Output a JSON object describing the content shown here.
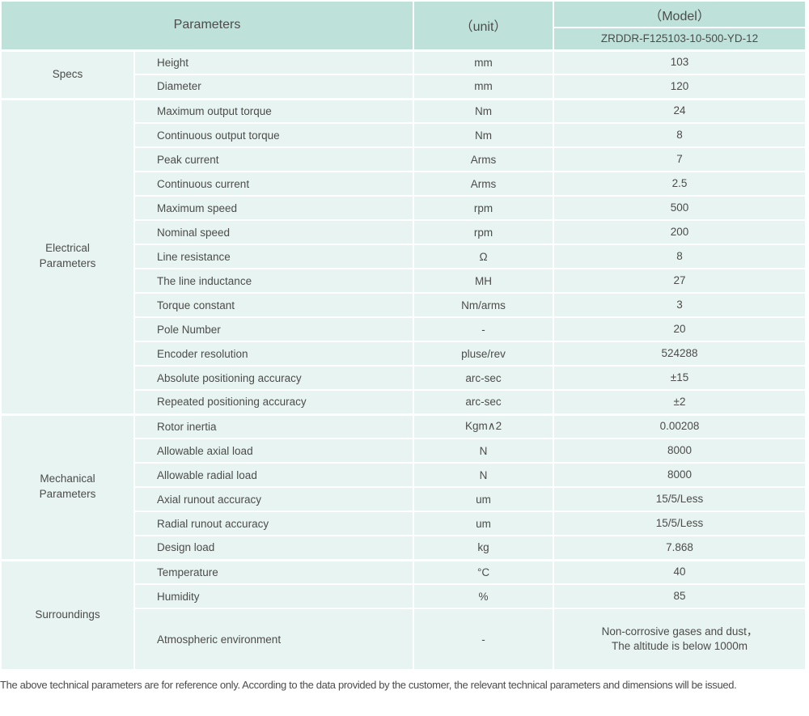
{
  "colors": {
    "header_bg": "#bee1d9",
    "row_bg": "#e8f4f1",
    "text": "#4c4c4c",
    "separator": "#ffffff"
  },
  "header": {
    "parameters_label": "Parameters",
    "unit_label": "（unit）",
    "model_label": "（Model）",
    "model_number": "ZRDDR-F125103-10-500-YD-12"
  },
  "groups": [
    {
      "label": "Specs",
      "rows": [
        {
          "name": "Height",
          "unit": "mm",
          "value": "103"
        },
        {
          "name": "Diameter",
          "unit": "mm",
          "value": "120"
        }
      ]
    },
    {
      "label": "Electrical\nParameters",
      "rows": [
        {
          "name": "Maximum output torque",
          "unit": "Nm",
          "value": "24"
        },
        {
          "name": "Continuous output torque",
          "unit": "Nm",
          "value": "8"
        },
        {
          "name": "Peak current",
          "unit": "Arms",
          "value": "7"
        },
        {
          "name": "Continuous current",
          "unit": "Arms",
          "value": "2.5"
        },
        {
          "name": "Maximum speed",
          "unit": "rpm",
          "value": "500"
        },
        {
          "name": "Nominal speed",
          "unit": "rpm",
          "value": "200"
        },
        {
          "name": "Line resistance",
          "unit": "Ω",
          "value": "8"
        },
        {
          "name": "The line inductance",
          "unit": "MH",
          "value": "27"
        },
        {
          "name": "Torque constant",
          "unit": "Nm/arms",
          "value": "3"
        },
        {
          "name": "Pole Number",
          "unit": "-",
          "value": "20"
        },
        {
          "name": "Encoder resolution",
          "unit": "pluse/rev",
          "value": "524288"
        },
        {
          "name": "Absolute positioning accuracy",
          "unit": "arc-sec",
          "value": "±15"
        },
        {
          "name": "Repeated positioning accuracy",
          "unit": "arc-sec",
          "value": "±2"
        }
      ]
    },
    {
      "label": "Mechanical\nParameters",
      "rows": [
        {
          "name": "Rotor inertia",
          "unit": "Kgm∧2",
          "value": "0.00208"
        },
        {
          "name": "Allowable axial load",
          "unit": "N",
          "value": "8000"
        },
        {
          "name": "Allowable radial load",
          "unit": "N",
          "value": "8000"
        },
        {
          "name": "Axial runout accuracy",
          "unit": "um",
          "value": "15/5/Less"
        },
        {
          "name": "Radial runout accuracy",
          "unit": "um",
          "value": "15/5/Less"
        },
        {
          "name": "Design load",
          "unit": "kg",
          "value": "7.868"
        }
      ]
    },
    {
      "label": "Surroundings",
      "rows": [
        {
          "name": "Temperature",
          "unit": "°C",
          "value": "40"
        },
        {
          "name": "Humidity",
          "unit": "%",
          "value": "85"
        },
        {
          "name": "Atmospheric environment",
          "unit": "-",
          "value": "Non-corrosive gases and dust，\nThe altitude is below 1000m",
          "tall": true
        }
      ]
    }
  ],
  "footer": {
    "note": "The above technical parameters are for reference only. According to the data provided by the customer, the relevant technical parameters and dimensions will be issued."
  }
}
